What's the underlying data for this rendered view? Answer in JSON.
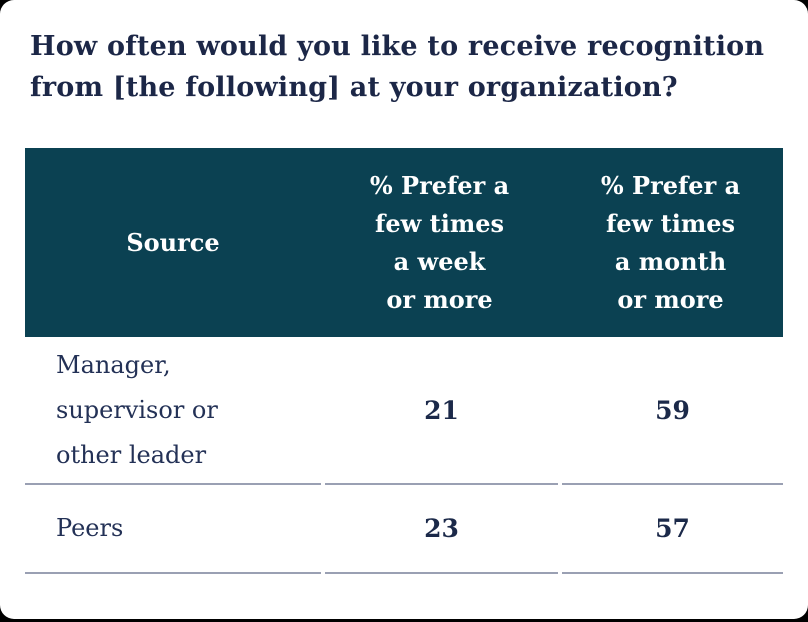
{
  "title_display": "How often would you like to receive recognition\nfrom [the following] at your organization?",
  "table": {
    "header": [
      {
        "label": "Source",
        "display": "Source"
      },
      {
        "label": "% Prefer a few times a week or more",
        "display": "% Prefer a\nfew times\na week\nor more"
      },
      {
        "label": "% Prefer a few times a month or more",
        "display": "% Prefer a\nfew times\na month\nor more"
      }
    ],
    "rows": [
      {
        "source_display": "Manager,\nsupervisor or\nother leader",
        "week": "21",
        "month": "59"
      },
      {
        "source_display": "Peers",
        "week": "23",
        "month": "57"
      }
    ]
  },
  "chart_data": {
    "type": "table",
    "title": "How often would you like to receive recognition from [the following] at your organization?",
    "columns": [
      "Source",
      "% Prefer a few times a week or more",
      "% Prefer a few times a month or more"
    ],
    "rows": [
      [
        "Manager, supervisor or other leader",
        21,
        59
      ],
      [
        "Peers",
        23,
        57
      ]
    ],
    "units": "percent"
  },
  "colors": {
    "page_background": "#000000",
    "card_background": "#ffffff",
    "header_background": "#0B4152",
    "header_text": "#ffffff",
    "title_text": "#1c2747",
    "body_text": "#233156",
    "value_text": "#1b2949",
    "row_rule": "#9aa0b3"
  }
}
